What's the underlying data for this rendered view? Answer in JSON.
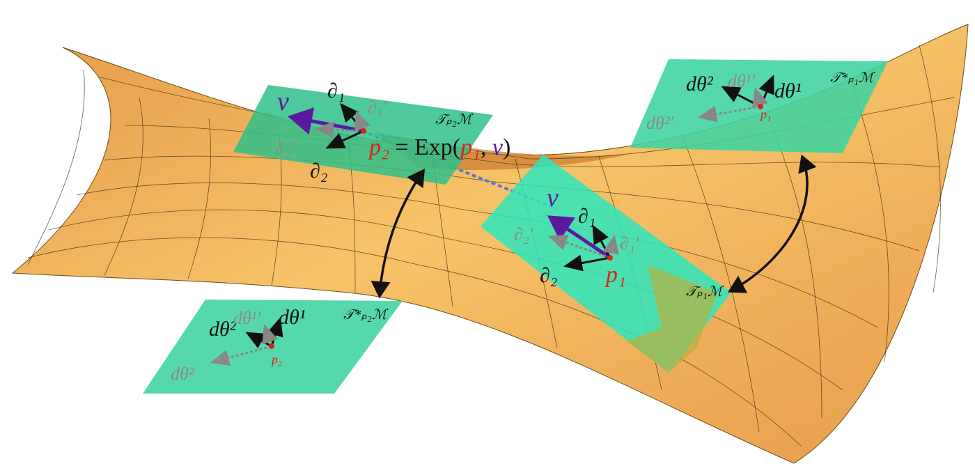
{
  "left_tangent_plane": {
    "label": "𝒯ₚ₂ℳ",
    "v": "v",
    "d1": "∂₁",
    "d1_prime": "∂₁′",
    "d2_prime": "∂₂′",
    "d2": "∂₂"
  },
  "exp_equation": {
    "p2": "p₂",
    "equals_exp": " = Exp(",
    "p1": "p₁",
    "comma": ", ",
    "v": "v",
    "close": ")"
  },
  "right_tangent_plane": {
    "label": "𝒯ₚ₁ℳ",
    "v": "v",
    "d1": "∂₁",
    "d1_prime": "∂₁′",
    "d2_prime": "∂₂′",
    "d2": "∂₂",
    "point": "p₁"
  },
  "top_right_cotangent_plane": {
    "label": "𝒯*ₚ₁ℳ",
    "dtheta2": "dθ²",
    "dtheta1_prime": "dθ¹′",
    "dtheta1": "dθ¹",
    "dtheta2_prime": "dθ²′",
    "point": "p₁"
  },
  "bottom_left_cotangent_plane": {
    "label": "𝒯*ₚ₂ℳ",
    "dtheta2": "dθ²",
    "dtheta1_prime": "dθ¹′",
    "dtheta1": "dθ¹",
    "dtheta2_faded": "dθ²",
    "point": "p₂"
  }
}
